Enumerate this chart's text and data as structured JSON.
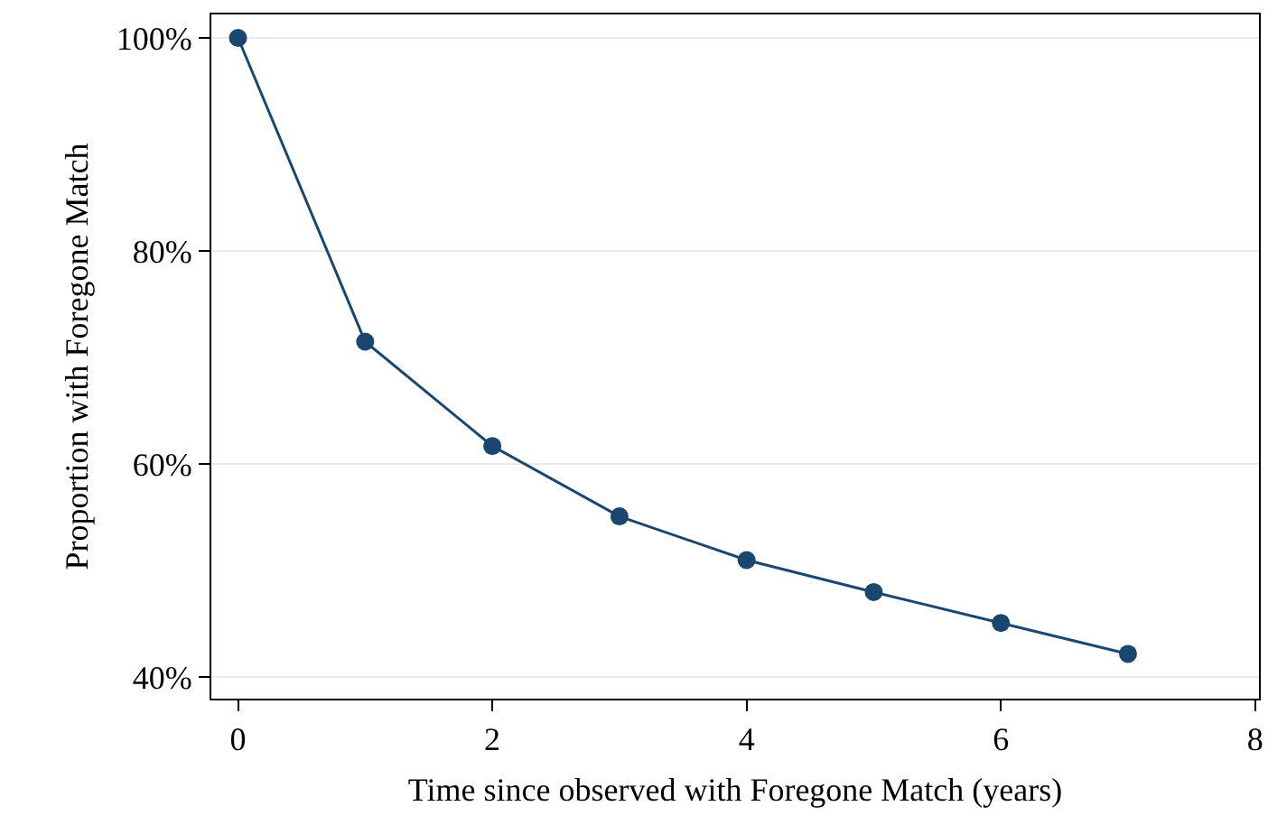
{
  "chart_data": {
    "type": "line",
    "xlabel": "Time since observed with Foregone Match (years)",
    "ylabel": "Proportion with Foregone Match",
    "x": [
      0,
      1,
      2,
      3,
      4,
      5,
      6,
      7
    ],
    "series": [
      {
        "color": "#1a476f",
        "values": [
          100,
          71.5,
          61.7,
          55.1,
          51,
          48,
          45.1,
          42.2
        ]
      }
    ],
    "xlim": [
      -0.21,
      8.03
    ],
    "xticks": [
      0,
      2,
      4,
      6,
      8
    ],
    "ylim": [
      38,
      102.2
    ],
    "yticks": [
      {
        "value": 40,
        "label": "40%"
      },
      {
        "value": 60,
        "label": "60%"
      },
      {
        "value": 80,
        "label": "80%"
      },
      {
        "value": 100,
        "label": "100%"
      }
    ],
    "grid": "y",
    "legend": false,
    "marker": "circle",
    "line_style": "solid"
  }
}
